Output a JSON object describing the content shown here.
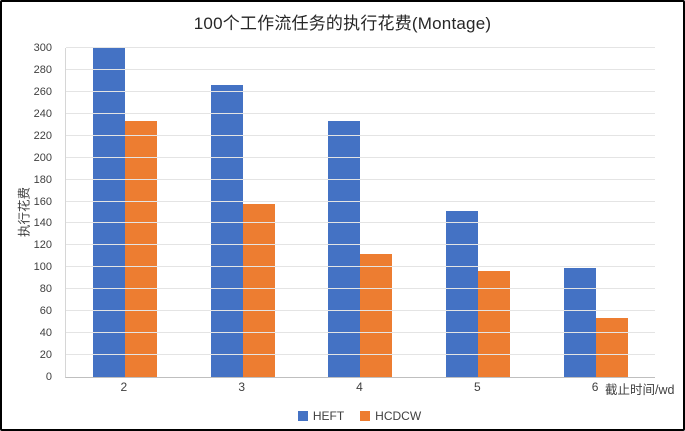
{
  "chart_data": {
    "type": "bar",
    "title": "100个工作流任务的执行花费(Montage)",
    "xlabel": "截止时间/wd",
    "ylabel": "执行花费",
    "categories": [
      "2",
      "3",
      "4",
      "5",
      "6"
    ],
    "series": [
      {
        "name": "HEFT",
        "color": "#4472C4",
        "values": [
          300,
          266,
          233,
          151,
          99
        ]
      },
      {
        "name": "HCDCW",
        "color": "#ED7D31",
        "values": [
          233,
          158,
          112,
          97,
          54
        ]
      }
    ],
    "ylim": [
      0,
      300
    ],
    "ytick_step": 20,
    "grid": true,
    "legend_position": "bottom"
  }
}
